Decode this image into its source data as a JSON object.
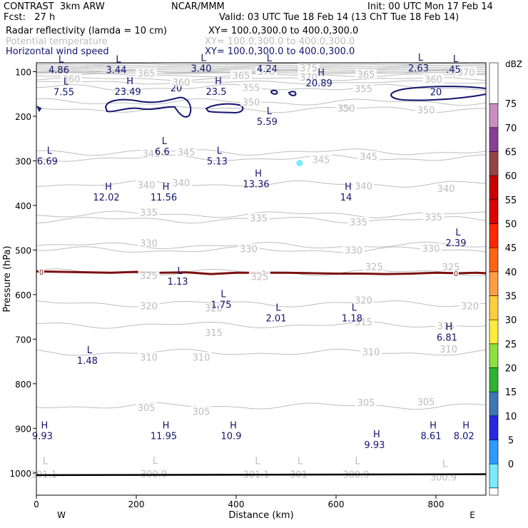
{
  "header": {
    "line1_left": "CONTRAST  3km ARW",
    "line1_center": "NCAR/MMM",
    "line1_right": "Init: 00 UTC Mon 17 Feb 14",
    "line2_left": "Fcst:   27 h",
    "line2_right": "Valid: 03 UTC Tue 18 Feb 14 (13 ChT Tue 18 Feb 14)",
    "field1_name": "Radar reflectivity (lamda = 10 cm)",
    "field1_xy": "XY= 100.0,300.0 to 400.0,300.0",
    "field2_name": "Potential temperature",
    "field2_xy": "XY= 100.0,300.0 to 400.0,300.0",
    "field3_name": "Horizontal wind speed",
    "field3_xy": "XY= 100.0,300.0 to 400.0,300.0"
  },
  "colors": {
    "wind": "#14146e",
    "theta": "#bdbdbd",
    "freezing": "#7b1010",
    "axis": "#000000"
  },
  "chart_data": {
    "type": "contour-cross-section",
    "xlabel": "Distance (km)",
    "ylabel": "Pressure (hPa)",
    "xlim": [
      0,
      900
    ],
    "ylim": [
      1050,
      80
    ],
    "x_ticks": [
      "0",
      "200",
      "400",
      "600",
      "800"
    ],
    "x_tick_values": [
      0,
      200,
      400,
      600,
      800
    ],
    "y_ticks": [
      "100",
      "200",
      "300",
      "400",
      "500",
      "600",
      "700",
      "800",
      "900",
      "1000"
    ],
    "y_tick_values": [
      100,
      200,
      300,
      400,
      500,
      600,
      700,
      800,
      900,
      1000
    ],
    "x_end_labels": {
      "left": "W",
      "right": "E"
    },
    "theta_labels": [
      {
        "text": "360",
        "x": 70,
        "p": 116
      },
      {
        "text": "365",
        "x": 220,
        "p": 103
      },
      {
        "text": "360",
        "x": 290,
        "p": 123
      },
      {
        "text": "365",
        "x": 410,
        "p": 108
      },
      {
        "text": "370",
        "x": 460,
        "p": 99
      },
      {
        "text": "375",
        "x": 545,
        "p": 91
      },
      {
        "text": "370",
        "x": 545,
        "p": 112
      },
      {
        "text": "365",
        "x": 660,
        "p": 106
      },
      {
        "text": "360",
        "x": 795,
        "p": 117
      },
      {
        "text": "370",
        "x": 860,
        "p": 101
      },
      {
        "text": "355",
        "x": 430,
        "p": 135
      },
      {
        "text": "355",
        "x": 655,
        "p": 138
      },
      {
        "text": "350",
        "x": 430,
        "p": 168
      },
      {
        "text": "350",
        "x": 620,
        "p": 182
      },
      {
        "text": "350",
        "x": 780,
        "p": 186
      },
      {
        "text": "345",
        "x": 230,
        "p": 283
      },
      {
        "text": "345",
        "x": 300,
        "p": 280
      },
      {
        "text": "345",
        "x": 570,
        "p": 297
      },
      {
        "text": "345",
        "x": 665,
        "p": 290
      },
      {
        "text": "340",
        "x": 220,
        "p": 354
      },
      {
        "text": "340",
        "x": 290,
        "p": 349
      },
      {
        "text": "340",
        "x": 655,
        "p": 356
      },
      {
        "text": "340",
        "x": 820,
        "p": 362
      },
      {
        "text": "335",
        "x": 225,
        "p": 415
      },
      {
        "text": "335",
        "x": 445,
        "p": 428
      },
      {
        "text": "335",
        "x": 645,
        "p": 437
      },
      {
        "text": "335",
        "x": 795,
        "p": 426
      },
      {
        "text": "330",
        "x": 225,
        "p": 484
      },
      {
        "text": "330",
        "x": 425,
        "p": 497
      },
      {
        "text": "330",
        "x": 635,
        "p": 500
      },
      {
        "text": "330",
        "x": 790,
        "p": 496
      },
      {
        "text": "325",
        "x": 225,
        "p": 557
      },
      {
        "text": "325",
        "x": 447,
        "p": 559
      },
      {
        "text": "325",
        "x": 676,
        "p": 537
      },
      {
        "text": "325",
        "x": 830,
        "p": 538
      },
      {
        "text": "320",
        "x": 225,
        "p": 625
      },
      {
        "text": "320",
        "x": 355,
        "p": 630
      },
      {
        "text": "320",
        "x": 655,
        "p": 612
      },
      {
        "text": "320",
        "x": 868,
        "p": 625
      },
      {
        "text": "315",
        "x": 355,
        "p": 685
      },
      {
        "text": "315",
        "x": 655,
        "p": 661
      },
      {
        "text": "315",
        "x": 820,
        "p": 670
      },
      {
        "text": "310",
        "x": 225,
        "p": 740
      },
      {
        "text": "310",
        "x": 330,
        "p": 740
      },
      {
        "text": "310",
        "x": 670,
        "p": 728
      },
      {
        "text": "310",
        "x": 825,
        "p": 722
      },
      {
        "text": "305",
        "x": 220,
        "p": 853
      },
      {
        "text": "305",
        "x": 330,
        "p": 862
      },
      {
        "text": "305",
        "x": 660,
        "p": 842
      },
      {
        "text": "305",
        "x": 780,
        "p": 840
      },
      {
        "text": "301.1",
        "x": 15,
        "p": 1003
      },
      {
        "text": "300.9",
        "x": 235,
        "p": 1002
      },
      {
        "text": "301.1",
        "x": 440,
        "p": 1003
      },
      {
        "text": "301",
        "x": 525,
        "p": 1003
      },
      {
        "text": "300.9",
        "x": 640,
        "p": 1003
      },
      {
        "text": "300.9",
        "x": 815,
        "p": 1009
      }
    ],
    "wind_extrema": [
      {
        "kind": "L",
        "value": "4.86",
        "x": 45,
        "p": 92,
        "color": "navy"
      },
      {
        "kind": "L",
        "value": "3.44",
        "x": 160,
        "p": 92,
        "color": "navy"
      },
      {
        "kind": "L",
        "value": "3.40",
        "x": 330,
        "p": 89,
        "color": "navy"
      },
      {
        "kind": "L",
        "value": "4.24",
        "x": 462,
        "p": 90,
        "color": "navy"
      },
      {
        "kind": "L",
        "value": "2.63",
        "x": 765,
        "p": 88,
        "color": "navy"
      },
      {
        "kind": "L",
        "value": ".45",
        "x": 835,
        "p": 91,
        "color": "navy"
      },
      {
        "kind": "L",
        "value": "7.55",
        "x": 55,
        "p": 142,
        "color": "navy"
      },
      {
        "kind": "H",
        "value": "23.49",
        "x": 183,
        "p": 141,
        "color": "navy"
      },
      {
        "kind": "H",
        "value": "23.5",
        "x": 360,
        "p": 141,
        "color": "navy"
      },
      {
        "kind": "H",
        "value": "20.89",
        "x": 566,
        "p": 122,
        "color": "navy"
      },
      {
        "kind": "L",
        "value": "5.59",
        "x": 462,
        "p": 208,
        "color": "navy"
      },
      {
        "kind": "L",
        "value": "6.69",
        "x": 22,
        "p": 297,
        "color": "navy"
      },
      {
        "kind": "L",
        "value": "6.6",
        "x": 252,
        "p": 275,
        "color": "navy"
      },
      {
        "kind": "L",
        "value": "5.13",
        "x": 362,
        "p": 297,
        "color": "navy"
      },
      {
        "kind": "H",
        "value": "13.36",
        "x": 440,
        "p": 348,
        "color": "navy"
      },
      {
        "kind": "H",
        "value": "12.02",
        "x": 140,
        "p": 378,
        "color": "navy"
      },
      {
        "kind": "H",
        "value": "11.56",
        "x": 255,
        "p": 378,
        "color": "navy"
      },
      {
        "kind": "H",
        "value": "14",
        "x": 620,
        "p": 378,
        "color": "navy"
      },
      {
        "kind": "L",
        "value": "2.39",
        "x": 840,
        "p": 480,
        "color": "navy"
      },
      {
        "kind": "L",
        "value": "1.13",
        "x": 283,
        "p": 567,
        "color": "navy"
      },
      {
        "kind": "L",
        "value": "1.75",
        "x": 370,
        "p": 619,
        "color": "navy"
      },
      {
        "kind": "L",
        "value": "2.01",
        "x": 480,
        "p": 649,
        "color": "navy"
      },
      {
        "kind": "L",
        "value": "1.18",
        "x": 632,
        "p": 649,
        "color": "navy"
      },
      {
        "kind": "H",
        "value": "6.81",
        "x": 822,
        "p": 692,
        "color": "navy"
      },
      {
        "kind": "L",
        "value": "1.48",
        "x": 102,
        "p": 744,
        "color": "navy"
      },
      {
        "kind": "H",
        "value": "9.93",
        "x": 12,
        "p": 913,
        "color": "navy"
      },
      {
        "kind": "H",
        "value": "11.95",
        "x": 255,
        "p": 913,
        "color": "navy"
      },
      {
        "kind": "H",
        "value": "10.9",
        "x": 390,
        "p": 913,
        "color": "navy"
      },
      {
        "kind": "H",
        "value": "9.93",
        "x": 677,
        "p": 933,
        "color": "navy"
      },
      {
        "kind": "H",
        "value": "8.61",
        "x": 790,
        "p": 913,
        "color": "navy"
      },
      {
        "kind": "H",
        "value": "8.02",
        "x": 856,
        "p": 913,
        "color": "navy"
      }
    ],
    "theta_extrema": [
      {
        "kind": "L",
        "value": "301.1",
        "x": 15,
        "p": 1003
      },
      {
        "kind": "L",
        "value": "300.9",
        "x": 235,
        "p": 1002
      },
      {
        "kind": "L",
        "value": "301.1",
        "x": 440,
        "p": 1003
      },
      {
        "kind": "L",
        "value": "301",
        "x": 525,
        "p": 1003
      },
      {
        "kind": "L",
        "value": "300.9",
        "x": 640,
        "p": 1003
      },
      {
        "kind": "L",
        "value": "300.9",
        "x": 815,
        "p": 1009
      }
    ],
    "wind_contour_labels": [
      {
        "text": "20",
        "x": 280,
        "p": 136
      },
      {
        "text": "20",
        "x": 800,
        "p": 145
      }
    ],
    "freezing_level": {
      "label": "0",
      "pressure": [
        548,
        549,
        550,
        551,
        549,
        551,
        550,
        554,
        551,
        551,
        551,
        552,
        553,
        553,
        554,
        553,
        551,
        552,
        551,
        552
      ],
      "x": [
        0,
        50,
        100,
        150,
        200,
        250,
        300,
        350,
        400,
        450,
        500,
        550,
        600,
        650,
        700,
        750,
        800,
        850,
        880,
        900
      ]
    },
    "reflectivity_point": {
      "x": 527,
      "p": 305,
      "dbz": 5
    },
    "colorbar": {
      "unit": "dBZ",
      "levels": [
        "75",
        "70",
        "65",
        "60",
        "55",
        "50",
        "45",
        "40",
        "35",
        "30",
        "25",
        "20",
        "15",
        "10",
        "5",
        "0"
      ],
      "colors": [
        "#c88ec3",
        "#8a3f96",
        "#944444",
        "#c80000",
        "#dc0000",
        "#ff2800",
        "#ff6414",
        "#ff9e44",
        "#ffce3c",
        "#ffec3c",
        "#8ce040",
        "#2cb42c",
        "#3c78b4",
        "#2828e0",
        "#2c9cff",
        "#78ecff",
        "#ffffff"
      ]
    }
  }
}
